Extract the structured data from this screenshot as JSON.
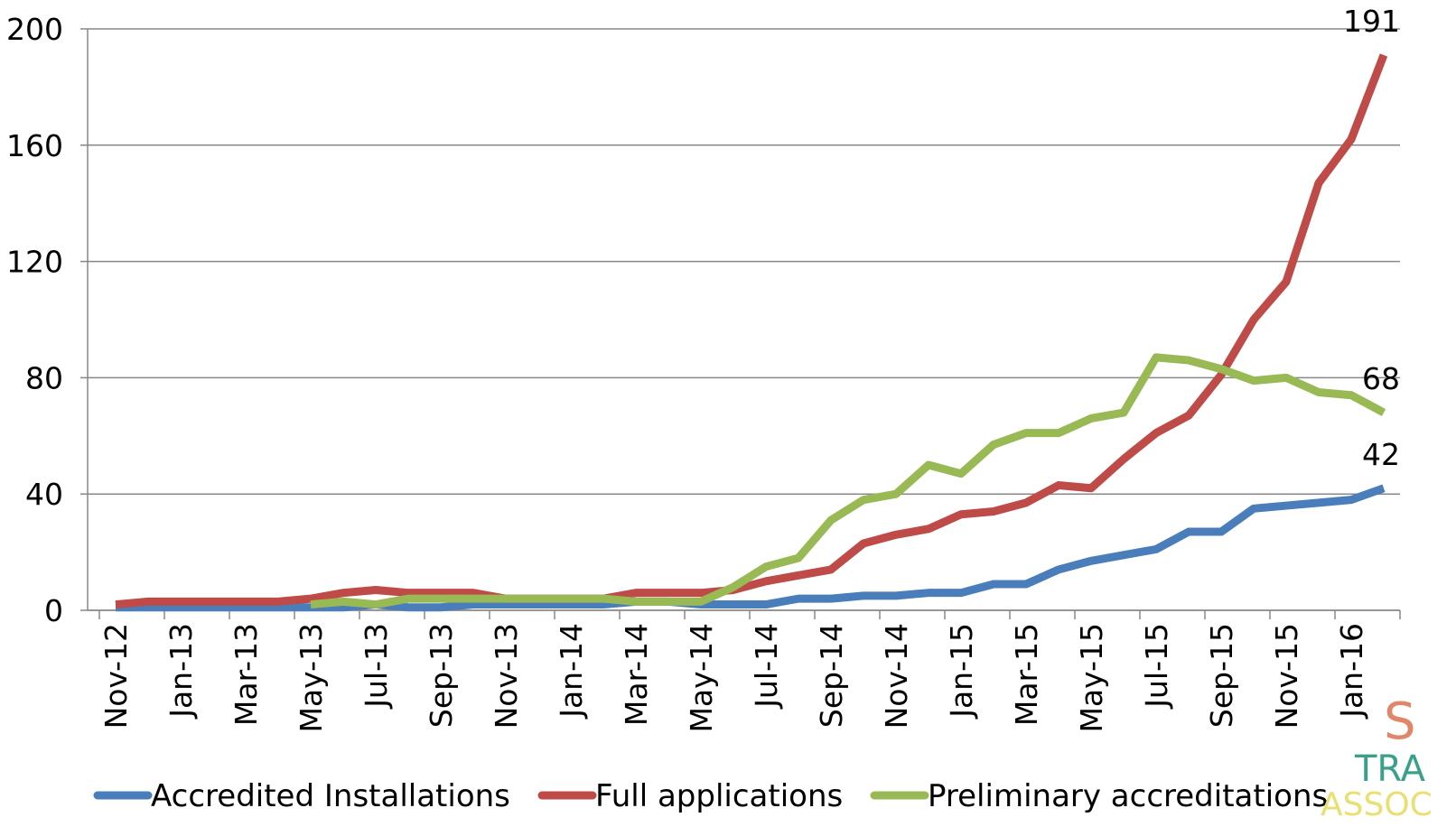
{
  "chart_data": {
    "type": "line",
    "categories": [
      "Nov-12",
      null,
      "Jan-13",
      null,
      "Mar-13",
      null,
      "May-13",
      null,
      "Jul-13",
      null,
      "Sep-13",
      null,
      "Nov-13",
      null,
      "Jan-14",
      null,
      "Mar-14",
      null,
      "May-14",
      null,
      "Jul-14",
      null,
      "Sep-14",
      null,
      "Nov-14",
      null,
      "Jan-15",
      null,
      "Mar-15",
      null,
      "May-15",
      null,
      "Jul-15",
      null,
      "Sep-15",
      null,
      "Nov-15",
      null,
      "Jan-16",
      null
    ],
    "series": [
      {
        "name": "Accredited Installations",
        "color": "#4a7ebb",
        "values": [
          1,
          1,
          1,
          1,
          1,
          1,
          1,
          1,
          2,
          1,
          1,
          2,
          2,
          2,
          2,
          2,
          3,
          3,
          2,
          2,
          2,
          4,
          4,
          5,
          5,
          6,
          6,
          9,
          9,
          14,
          17,
          19,
          21,
          27,
          27,
          35,
          36,
          37,
          38,
          42
        ]
      },
      {
        "name": "Full applications",
        "color": "#be4b48",
        "values": [
          2,
          3,
          3,
          3,
          3,
          3,
          4,
          6,
          7,
          6,
          6,
          6,
          4,
          4,
          4,
          4,
          6,
          6,
          6,
          7,
          10,
          12,
          14,
          23,
          26,
          28,
          33,
          34,
          37,
          43,
          42,
          52,
          61,
          67,
          81,
          100,
          113,
          147,
          162,
          191
        ]
      },
      {
        "name": "Preliminary accreditations",
        "color": "#98b954",
        "values": [
          null,
          null,
          null,
          null,
          null,
          null,
          2,
          3,
          2,
          4,
          4,
          4,
          4,
          4,
          4,
          4,
          3,
          3,
          3,
          8,
          15,
          18,
          31,
          38,
          40,
          50,
          47,
          57,
          61,
          61,
          66,
          68,
          87,
          86,
          83,
          79,
          80,
          75,
          74,
          68
        ]
      }
    ],
    "ylim": [
      0,
      200
    ],
    "yticks": [
      0,
      40,
      80,
      120,
      160,
      200
    ],
    "grid": true,
    "legend": "bottom"
  },
  "logo": [
    "S",
    "TRA",
    "ASSOC"
  ]
}
